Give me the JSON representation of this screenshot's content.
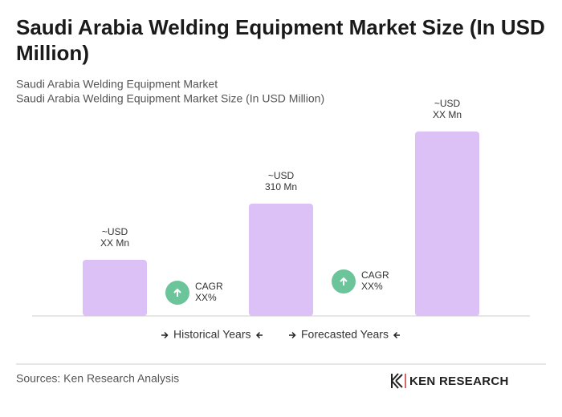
{
  "chart_data": {
    "type": "bar",
    "title": "Saudi Arabia Welding Equipment Market Size (In USD Million)",
    "subtitles": [
      "Saudi Arabia Welding Equipment Market",
      "Saudi Arabia Welding Equipment Market Size (In USD Million)"
    ],
    "values": [
      155,
      310,
      509
    ],
    "value_labels": [
      [
        "~USD",
        "XX Mn"
      ],
      [
        "~USD",
        "310 Mn"
      ],
      [
        "~USD",
        "XX Mn"
      ]
    ],
    "color": "#dcc1f7",
    "annotations": [
      {
        "label": "CAGR",
        "value": "XX%"
      },
      {
        "label": "CAGR",
        "value": "XX%"
      }
    ],
    "annotation_color": "#6cc59a",
    "legend": [
      "Historical Years",
      "Forecasted Years"
    ],
    "source": "Sources: Ken Research Analysis",
    "logo": "KEN RESEARCH"
  }
}
